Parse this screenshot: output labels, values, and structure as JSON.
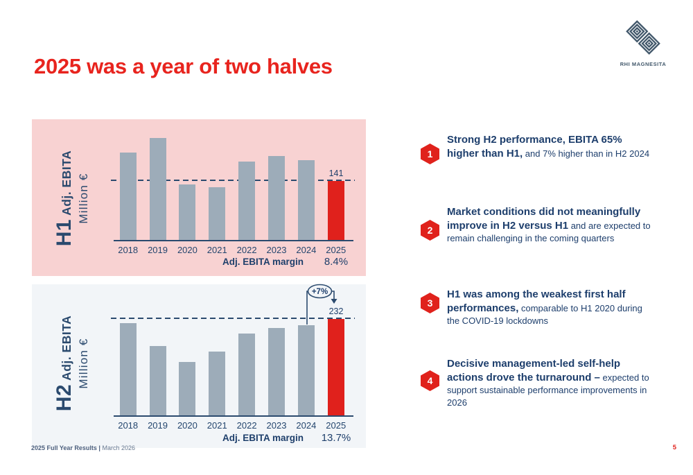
{
  "header": {
    "title": "2025 was a year of two halves",
    "brand": "RHI MAGNESITA"
  },
  "colors": {
    "title_red": "#e8241e",
    "accent_red": "#e0211c",
    "navy_text": "#1d3e6c",
    "axis_navy": "#2b4a6e",
    "bar_gray": "#9dacb9",
    "panel_pink": "#f8d2d2",
    "panel_gray": "#f2f5f8",
    "logo_slate": "#42586b"
  },
  "chart_data": [
    {
      "type": "bar",
      "id": "h1",
      "half_label": "H1",
      "metric_label": "Adj. EBITA",
      "unit_label": "Million €",
      "ylabel": "H1 Adj. EBITA Million €",
      "categories": [
        "2018",
        "2019",
        "2020",
        "2021",
        "2022",
        "2023",
        "2024",
        "2025"
      ],
      "values": [
        210,
        245,
        133,
        127,
        189,
        202,
        191,
        141
      ],
      "ylim": [
        0,
        260
      ],
      "grid": false,
      "highlight_category": "2025",
      "highlight_value": 141,
      "highlight_label": "141",
      "reference_line": 141,
      "margin_label": "Adj. EBITA margin",
      "margin_value": "8.4%",
      "bar_color": "#9dacb9",
      "highlight_color": "#e0211c",
      "panel_bg": "#f8d2d2"
    },
    {
      "type": "bar",
      "id": "h2",
      "half_label": "H2",
      "metric_label": "Adj. EBITA",
      "unit_label": "Million €",
      "ylabel": "H2 Adj. EBITA Million €",
      "categories": [
        "2018",
        "2019",
        "2020",
        "2021",
        "2022",
        "2023",
        "2024",
        "2025"
      ],
      "values": [
        221,
        167,
        128,
        154,
        197,
        210,
        217,
        232
      ],
      "ylim": [
        0,
        260
      ],
      "grid": false,
      "highlight_category": "2025",
      "highlight_value": 232,
      "highlight_label": "232",
      "reference_line": 232,
      "margin_label": "Adj. EBITA margin",
      "margin_value": "13.7%",
      "bar_color": "#9dacb9",
      "highlight_color": "#e0211c",
      "panel_bg": "#f2f5f8",
      "annotation": {
        "text": "+7%",
        "from_category": "2024",
        "to_category": "2025"
      }
    }
  ],
  "points": [
    {
      "num": "1",
      "bold": "Strong H2 performance, EBITA 65% higher than H1,",
      "regular": " and 7% higher than in H2 2024"
    },
    {
      "num": "2",
      "bold": "Market conditions did not meaningfully improve in H2 versus H1",
      "regular": " and are expected to remain challenging in the coming quarters"
    },
    {
      "num": "3",
      "bold": "H1 was among the weakest first half performances,",
      "regular": " comparable to H1 2020 during the COVID-19 lockdowns"
    },
    {
      "num": "4",
      "bold": "Decisive management-led self-help actions drove the turnaround –",
      "regular": " expected to support sustainable performance improvements in 2026"
    }
  ],
  "footer": {
    "doc_title": "2025 Full Year Results",
    "separator": "|",
    "date": "March 2026",
    "page_number": "5"
  }
}
